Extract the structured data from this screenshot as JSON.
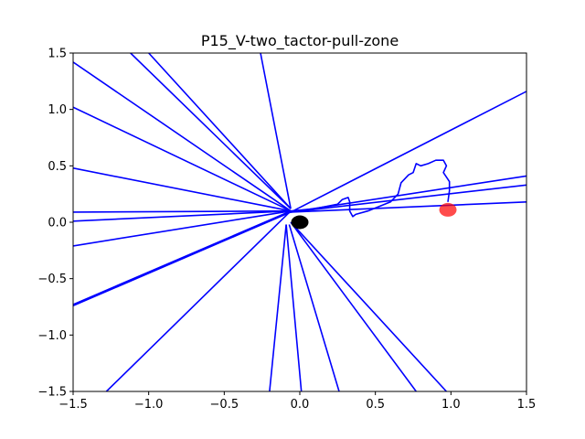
{
  "chart_data": {
    "type": "line",
    "title": "P15_V-two_tactor-pull-zone",
    "xlabel": "",
    "ylabel": "",
    "xlim": [
      -1.5,
      1.5
    ],
    "ylim": [
      -1.5,
      1.5
    ],
    "xticks": [
      -1.5,
      -1.0,
      -0.5,
      0.0,
      0.5,
      1.0,
      1.5
    ],
    "yticks": [
      -1.5,
      -1.0,
      -0.5,
      0.0,
      0.5,
      1.0,
      1.5
    ],
    "xtick_labels": [
      "−1.5",
      "−1.0",
      "−0.5",
      "0.0",
      "0.5",
      "1.0",
      "1.5"
    ],
    "ytick_labels": [
      "−1.5",
      "−1.0",
      "−0.5",
      "0.0",
      "0.5",
      "1.0",
      "1.5"
    ],
    "grid": false,
    "legend": null,
    "colors": {
      "lines": "#0000ff",
      "start_marker": "#000000",
      "target_marker": "#ff0000"
    },
    "series": [
      {
        "values": [
          [
            -0.06,
            0.1
          ],
          [
            -1.5,
            1.42
          ]
        ]
      },
      {
        "values": [
          [
            -0.06,
            0.1
          ],
          [
            -1.5,
            1.02
          ]
        ]
      },
      {
        "values": [
          [
            -0.06,
            0.1
          ],
          [
            -1.5,
            0.48
          ]
        ]
      },
      {
        "values": [
          [
            -0.06,
            0.1
          ],
          [
            -1.5,
            0.09
          ]
        ]
      },
      {
        "values": [
          [
            -0.06,
            0.1
          ],
          [
            -1.5,
            0.01
          ]
        ]
      },
      {
        "values": [
          [
            -0.06,
            0.1
          ],
          [
            -1.5,
            -0.21
          ]
        ]
      },
      {
        "values": [
          [
            -0.06,
            0.1
          ],
          [
            -1.5,
            -0.73
          ]
        ]
      },
      {
        "values": [
          [
            -0.06,
            0.09
          ],
          [
            -1.5,
            -0.74
          ]
        ]
      },
      {
        "values": [
          [
            -0.06,
            0.1
          ],
          [
            -1.28,
            -1.5
          ]
        ]
      },
      {
        "values": [
          [
            -0.06,
            0.12
          ],
          [
            -1.12,
            1.5
          ]
        ]
      },
      {
        "values": [
          [
            -0.06,
            0.12
          ],
          [
            -1.0,
            1.5
          ]
        ]
      },
      {
        "values": [
          [
            -0.06,
            0.12
          ],
          [
            -0.26,
            1.5
          ]
        ]
      },
      {
        "values": [
          [
            -0.06,
            0.09
          ],
          [
            1.5,
            1.16
          ]
        ]
      },
      {
        "values": [
          [
            -0.06,
            0.09
          ],
          [
            1.5,
            0.41
          ]
        ]
      },
      {
        "values": [
          [
            -0.06,
            0.09
          ],
          [
            1.5,
            0.33
          ]
        ]
      },
      {
        "values": [
          [
            -0.06,
            0.09
          ],
          [
            1.5,
            0.18
          ]
        ]
      },
      {
        "values": [
          [
            -0.09,
            -0.02
          ],
          [
            -0.2,
            -1.5
          ]
        ]
      },
      {
        "values": [
          [
            -0.09,
            -0.02
          ],
          [
            0.01,
            -1.5
          ]
        ]
      },
      {
        "values": [
          [
            -0.07,
            -0.02
          ],
          [
            0.26,
            -1.5
          ]
        ]
      },
      {
        "values": [
          [
            -0.06,
            0.0
          ],
          [
            0.77,
            -1.5
          ]
        ]
      },
      {
        "values": [
          [
            -0.06,
            0.0
          ],
          [
            0.97,
            -1.5
          ]
        ]
      },
      {
        "values": [
          [
            -0.06,
            0.1
          ],
          [
            0.1,
            0.12
          ],
          [
            0.25,
            0.16
          ],
          [
            0.28,
            0.2
          ],
          [
            0.32,
            0.22
          ],
          [
            0.33,
            0.18
          ],
          [
            0.33,
            0.1
          ],
          [
            0.35,
            0.05
          ],
          [
            0.37,
            0.07
          ],
          [
            0.45,
            0.1
          ],
          [
            0.6,
            0.18
          ],
          [
            0.65,
            0.25
          ],
          [
            0.67,
            0.35
          ],
          [
            0.72,
            0.42
          ],
          [
            0.75,
            0.44
          ],
          [
            0.77,
            0.52
          ],
          [
            0.8,
            0.5
          ],
          [
            0.85,
            0.52
          ],
          [
            0.9,
            0.55
          ],
          [
            0.95,
            0.55
          ],
          [
            0.97,
            0.5
          ],
          [
            0.95,
            0.44
          ],
          [
            0.99,
            0.36
          ],
          [
            0.99,
            0.28
          ],
          [
            0.98,
            0.18
          ]
        ]
      }
    ],
    "markers": [
      {
        "name": "start",
        "x": 0.0,
        "y": 0.0,
        "color": "#000000"
      },
      {
        "name": "target",
        "x": 0.98,
        "y": 0.11,
        "color": "#ff0000"
      }
    ]
  }
}
